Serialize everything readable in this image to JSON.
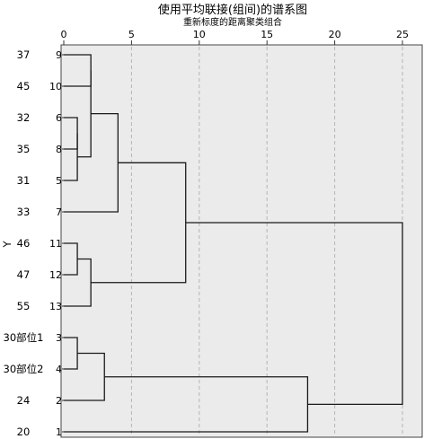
{
  "chart_data": {
    "type": "dendrogram",
    "title": "使用平均联接(组间)的谱系图",
    "subtitle": "重新标度的距离聚类组合",
    "ylabel": "Y",
    "x_ticks": [
      0,
      5,
      10,
      15,
      20,
      25
    ],
    "xlim": [
      0,
      25
    ],
    "grid": true,
    "leaves": [
      {
        "case": "37",
        "id": "9"
      },
      {
        "case": "45",
        "id": "10"
      },
      {
        "case": "32",
        "id": "6"
      },
      {
        "case": "35",
        "id": "8"
      },
      {
        "case": "31",
        "id": "5"
      },
      {
        "case": "33",
        "id": "7"
      },
      {
        "case": "46",
        "id": "11"
      },
      {
        "case": "47",
        "id": "12"
      },
      {
        "case": "55",
        "id": "13"
      },
      {
        "case": "30部位1",
        "id": "3"
      },
      {
        "case": "30部位2",
        "id": "4"
      },
      {
        "case": "24",
        "id": "2"
      },
      {
        "case": "20",
        "id": "1"
      }
    ],
    "merges": [
      {
        "a": "L6",
        "b": "L8",
        "height": 1
      },
      {
        "a": "M0",
        "b": "L5",
        "height": 1
      },
      {
        "a": "L9",
        "b": "L10",
        "height": 2
      },
      {
        "a": "M2",
        "b": "M1",
        "height": 2
      },
      {
        "a": "M3",
        "b": "L7",
        "height": 4
      },
      {
        "a": "L11",
        "b": "L12",
        "height": 1
      },
      {
        "a": "M5",
        "b": "L13",
        "height": 2
      },
      {
        "a": "M4",
        "b": "M6",
        "height": 9
      },
      {
        "a": "L3",
        "b": "L4",
        "height": 1
      },
      {
        "a": "M8",
        "b": "L2",
        "height": 3
      },
      {
        "a": "M9",
        "b": "L1",
        "height": 18
      },
      {
        "a": "M7",
        "b": "M10",
        "height": 25
      }
    ]
  }
}
